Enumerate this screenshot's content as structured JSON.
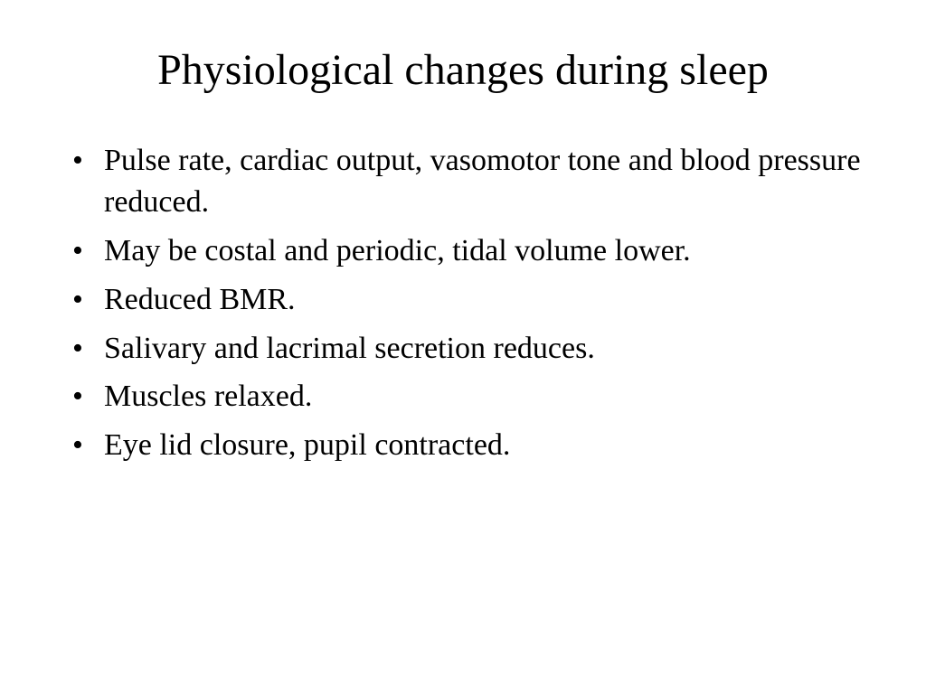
{
  "slide": {
    "title": "Physiological changes during sleep",
    "title_fontsize": 48,
    "body_fontsize": 34,
    "background_color": "#ffffff",
    "text_color": "#000000",
    "font_family": "Times New Roman",
    "bullets": [
      "Pulse rate, cardiac output, vasomotor tone and blood pressure reduced.",
      "May be costal and periodic, tidal volume lower.",
      "Reduced BMR.",
      "Salivary and lacrimal secretion reduces.",
      "Muscles relaxed.",
      "Eye lid closure, pupil contracted."
    ]
  }
}
